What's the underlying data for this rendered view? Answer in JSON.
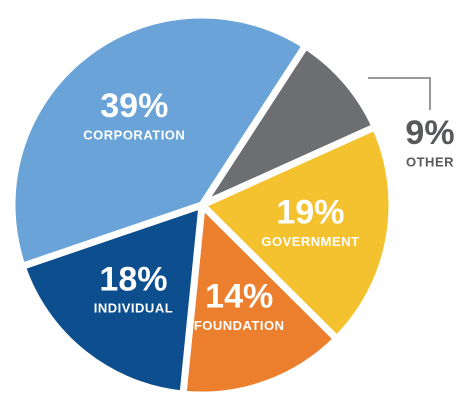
{
  "chart_data": {
    "type": "pie",
    "categories": [
      "OTHER",
      "GOVERNMENT",
      "FOUNDATION",
      "INDIVIDUAL",
      "CORPORATION"
    ],
    "values": [
      9,
      19,
      14,
      18,
      39
    ],
    "value_labels": [
      "9%",
      "19%",
      "14%",
      "18%",
      "39%"
    ],
    "colors": [
      "#6d6e71",
      "#f4c22f",
      "#ec7f2d",
      "#0d4f8e",
      "#69a3d8"
    ]
  }
}
